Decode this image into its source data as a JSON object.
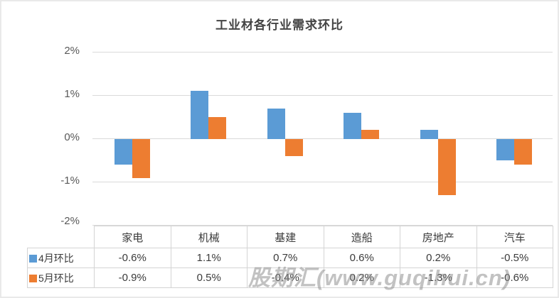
{
  "title": "工业材各行业需求环比",
  "watermark": "股期汇(www.guqihui.cn)",
  "colors": {
    "series_april": "#5B9BD5",
    "series_may": "#ED7D31",
    "gridline": "#DADADA",
    "table_border": "#D4D4D4",
    "text": "#404040"
  },
  "chart_data": {
    "type": "bar",
    "title": "工业材各行业需求环比",
    "categories": [
      "家电",
      "机械",
      "基建",
      "造船",
      "房地产",
      "汽车"
    ],
    "series": [
      {
        "name": "4月环比",
        "color": "#5B9BD5",
        "values": [
          -0.6,
          1.1,
          0.7,
          0.6,
          0.2,
          -0.5
        ]
      },
      {
        "name": "5月环比",
        "color": "#ED7D31",
        "values": [
          -0.9,
          0.5,
          -0.4,
          0.2,
          -1.3,
          -0.6
        ]
      }
    ],
    "table_values": [
      [
        "-0.6%",
        "1.1%",
        "0.7%",
        "0.6%",
        "0.2%",
        "-0.5%"
      ],
      [
        "-0.9%",
        "0.5%",
        "-0.4%",
        "0.2%",
        "-1.3%",
        "-0.6%"
      ]
    ],
    "yticks": [
      "2%",
      "1%",
      "0%",
      "-1%",
      "-2%"
    ],
    "ylim": [
      -2,
      2
    ],
    "grid": true,
    "legend_position": "table-left",
    "value_format": "percent"
  }
}
